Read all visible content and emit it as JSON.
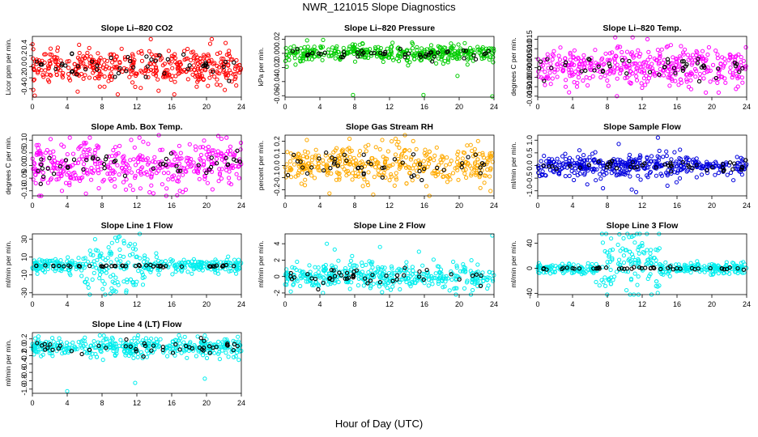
{
  "page": {
    "title": "NWR_121015  Slope Diagnostics",
    "xlabel": "Hour of Day (UTC)"
  },
  "chart_data": [
    {
      "type": "scatter",
      "title": "Slope Li–820 CO2",
      "ylabel": "Licor ppm per min.",
      "xlim": [
        0,
        24
      ],
      "ylim": [
        -0.55,
        0.55
      ],
      "xticks": [
        0,
        4,
        8,
        12,
        16,
        20,
        24
      ],
      "yticks": [
        -0.4,
        -0.2,
        0.0,
        0.2,
        0.4
      ],
      "ytick_labels": [
        "-0.4",
        "-0.2",
        "0.0",
        "0.2",
        "0.4"
      ],
      "color": "#ff0000",
      "spread": 0.15,
      "black_spread": 0.1,
      "outliers": [
        [
          0.1,
          -0.42
        ],
        [
          5.2,
          -0.45
        ],
        [
          9.8,
          -0.5
        ],
        [
          13.6,
          0.5
        ],
        [
          16.3,
          -0.5
        ],
        [
          20.6,
          0.5
        ],
        [
          22.1,
          -0.42
        ]
      ]
    },
    {
      "type": "scatter",
      "title": "Slope Li–820 Pressure",
      "ylabel": "kPa per min.",
      "xlim": [
        0,
        24
      ],
      "ylim": [
        -0.062,
        0.024
      ],
      "xticks": [
        0,
        4,
        8,
        12,
        16,
        20,
        24
      ],
      "yticks": [
        -0.06,
        -0.04,
        -0.02,
        0.0,
        0.02
      ],
      "ytick_labels": [
        "-0.06",
        "-0.04",
        "-0.02",
        "0.00",
        "0.02"
      ],
      "color": "#00cc00",
      "spread": 0.006,
      "black_spread": 0.004,
      "outliers": [
        [
          0.2,
          -0.019
        ],
        [
          7.8,
          -0.059
        ],
        [
          15.9,
          -0.059
        ],
        [
          19.8,
          -0.032
        ],
        [
          23.8,
          -0.061
        ],
        [
          1.2,
          -0.016
        ]
      ]
    },
    {
      "type": "scatter",
      "title": "Slope Li–820 Temp.",
      "ylabel": "degrees C per min.",
      "xlim": [
        0,
        24
      ],
      "ylim": [
        -0.0155,
        0.0165
      ],
      "xticks": [
        0,
        4,
        8,
        12,
        16,
        20,
        24
      ],
      "yticks": [
        -0.015,
        -0.01,
        -0.005,
        0.0,
        0.005,
        0.01,
        0.015
      ],
      "ytick_labels": [
        "-0.015",
        "-0.010",
        "-0.005",
        "0.000",
        "0.005",
        "0.010",
        "0.015"
      ],
      "color": "#ff00ff",
      "spread": 0.005,
      "black_spread": 0.003,
      "outliers": [
        [
          3.6,
          -0.013
        ],
        [
          8.9,
          0.016
        ],
        [
          10.9,
          0.016
        ],
        [
          12.6,
          0.015
        ],
        [
          9.1,
          -0.015
        ]
      ]
    },
    {
      "type": "scatter",
      "title": "Slope Amb. Box Temp.",
      "ylabel": "degrees C per min.",
      "xlim": [
        0,
        24
      ],
      "ylim": [
        -0.12,
        0.12
      ],
      "xticks": [
        0,
        4,
        8,
        12,
        16,
        20,
        24
      ],
      "yticks": [
        -0.1,
        -0.05,
        0.0,
        0.05,
        0.1
      ],
      "ytick_labels": [
        "-0.10",
        "-0.05",
        "0.00",
        "0.05",
        "0.10"
      ],
      "color": "#ff00ff",
      "spread": 0.045,
      "black_spread": 0.03,
      "outliers": [
        [
          4.3,
          0.11
        ],
        [
          6.6,
          0.11
        ],
        [
          12.3,
          0.11
        ],
        [
          22.3,
          0.11
        ],
        [
          13.9,
          -0.11
        ],
        [
          3.4,
          -0.1
        ]
      ]
    },
    {
      "type": "scatter",
      "title": "Slope Gas Stream RH",
      "ylabel": "percent per min.",
      "xlim": [
        0,
        24
      ],
      "ylim": [
        -0.25,
        0.25
      ],
      "xticks": [
        0,
        4,
        8,
        12,
        16,
        20,
        24
      ],
      "yticks": [
        -0.2,
        -0.1,
        0.0,
        0.1,
        0.2
      ],
      "ytick_labels": [
        "-0.2",
        "-0.1",
        "0.0",
        "0.1",
        "0.2"
      ],
      "color": "#ffaa00",
      "spread": 0.08,
      "black_spread": 0.05,
      "outliers": [
        [
          2.5,
          0.21
        ],
        [
          12.7,
          0.22
        ],
        [
          7.4,
          0.22
        ],
        [
          5.1,
          -0.23
        ],
        [
          23.6,
          -0.21
        ]
      ]
    },
    {
      "type": "scatter",
      "title": "Slope Sample Flow",
      "ylabel": "ml/min per min.",
      "xlim": [
        0,
        24
      ],
      "ylim": [
        -1.2,
        1.2
      ],
      "xticks": [
        0,
        4,
        8,
        12,
        16,
        20,
        24
      ],
      "yticks": [
        -1.0,
        -0.5,
        0.0,
        0.5,
        1.0
      ],
      "ytick_labels": [
        "-1.0",
        "-0.5",
        "0.0",
        "0.5",
        "1.0"
      ],
      "color": "#0000dd",
      "spread": 0.22,
      "black_spread": 0.1,
      "outliers": [
        [
          13.8,
          1.1
        ],
        [
          10.8,
          -0.95
        ],
        [
          11.3,
          -1.05
        ],
        [
          7.5,
          -0.9
        ],
        [
          9.3,
          0.85
        ],
        [
          0.5,
          -0.35
        ],
        [
          14.9,
          -0.8
        ]
      ]
    },
    {
      "type": "scatter",
      "title": "Slope Line 1 Flow",
      "ylabel": "ml/min per min.",
      "xlim": [
        0,
        24
      ],
      "ylim": [
        -32,
        36
      ],
      "xticks": [
        0,
        4,
        8,
        12,
        16,
        20,
        24
      ],
      "yticks": [
        -30,
        -10,
        10,
        30
      ],
      "ytick_labels": [
        "-30",
        "-10",
        "10",
        "30"
      ],
      "color": "#00eeee",
      "spread": 4,
      "black_spread": 0.5,
      "burst": [
        6,
        13,
        16
      ],
      "outliers": [
        [
          7.2,
          30
        ],
        [
          10.0,
          33
        ],
        [
          10.5,
          28
        ],
        [
          11.3,
          -15
        ],
        [
          9.1,
          -25
        ],
        [
          6.6,
          -32
        ],
        [
          8.3,
          -20
        ]
      ]
    },
    {
      "type": "scatter",
      "title": "Slope Line 2 Flow",
      "ylabel": "ml/min per min.",
      "xlim": [
        0,
        24
      ],
      "ylim": [
        -2.2,
        5.2
      ],
      "xticks": [
        0,
        4,
        8,
        12,
        16,
        20,
        24
      ],
      "yticks": [
        -2,
        0,
        2,
        4
      ],
      "ytick_labels": [
        "-2",
        "0",
        "2",
        "4"
      ],
      "color": "#00eeee",
      "spread": 0.8,
      "black_spread": 0.5,
      "outliers": [
        [
          4.8,
          4.0
        ],
        [
          5.7,
          3.3
        ],
        [
          10.9,
          3.6
        ],
        [
          7.7,
          2.5
        ],
        [
          23.8,
          5.0
        ],
        [
          18.9,
          -1.7
        ],
        [
          9.8,
          -1.4
        ]
      ]
    },
    {
      "type": "scatter",
      "title": "Slope Line 3 Flow",
      "ylabel": "ml/min per min.",
      "xlim": [
        0,
        24
      ],
      "ylim": [
        -42,
        55
      ],
      "xticks": [
        0,
        4,
        8,
        12,
        16,
        20,
        24
      ],
      "yticks": [
        -40,
        0,
        40
      ],
      "ytick_labels": [
        "-40",
        "0",
        "40"
      ],
      "color": "#00eeee",
      "spread": 5,
      "black_spread": 1,
      "burst": [
        7,
        14,
        22
      ],
      "outliers": [
        [
          10.5,
          50
        ],
        [
          11.0,
          52
        ],
        [
          9.5,
          28
        ],
        [
          10.2,
          -35
        ],
        [
          8.4,
          -25
        ],
        [
          6.7,
          -22
        ]
      ]
    },
    {
      "type": "scatter",
      "title": "Slope Line 4 (LT) Flow",
      "ylabel": "ml/min per min.",
      "xlim": [
        0,
        24
      ],
      "ylim": [
        -1.1,
        0.35
      ],
      "xticks": [
        0,
        4,
        8,
        12,
        16,
        20,
        24
      ],
      "yticks": [
        -1.0,
        -0.8,
        -0.6,
        -0.4,
        -0.2,
        0.0,
        0.2
      ],
      "ytick_labels": [
        "-1.0",
        "-0.8",
        "-0.6",
        "-0.4",
        "-0.2",
        "0.0",
        "0.2"
      ],
      "color": "#00eeee",
      "spread": 0.11,
      "black_spread": 0.08,
      "outliers": [
        [
          4.0,
          -1.05
        ],
        [
          11.8,
          -0.85
        ],
        [
          19.8,
          -0.75
        ],
        [
          19.8,
          0.28
        ],
        [
          23.7,
          -0.3
        ]
      ]
    }
  ]
}
